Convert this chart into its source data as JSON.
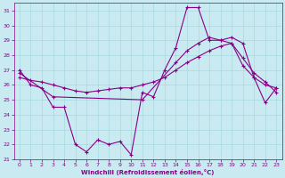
{
  "background_color": "#c8eaf0",
  "grid_color": "#a8d8e0",
  "line_color": "#880088",
  "xlabel": "Windchill (Refroidissement éolien,°C)",
  "xlim": [
    -0.5,
    23.5
  ],
  "ylim": [
    21,
    31.5
  ],
  "yticks": [
    21,
    22,
    23,
    24,
    25,
    26,
    27,
    28,
    29,
    30,
    31
  ],
  "xticks": [
    0,
    1,
    2,
    3,
    4,
    5,
    6,
    7,
    8,
    9,
    10,
    11,
    12,
    13,
    14,
    15,
    16,
    17,
    18,
    19,
    20,
    21,
    22,
    23
  ],
  "line1_x": [
    0,
    1,
    2,
    3,
    4,
    5,
    6,
    7,
    8,
    9,
    10,
    11,
    12,
    13,
    14,
    15,
    16,
    17,
    18,
    19,
    20,
    21,
    22,
    23
  ],
  "line1_y": [
    27.0,
    26.0,
    25.8,
    24.5,
    24.5,
    22.0,
    21.5,
    22.3,
    22.0,
    22.2,
    21.3,
    25.5,
    25.2,
    27.0,
    28.5,
    31.2,
    31.2,
    29.0,
    29.0,
    29.2,
    28.8,
    26.5,
    24.8,
    25.8
  ],
  "line2_x": [
    0,
    3,
    11,
    14,
    15,
    16,
    17,
    18,
    19,
    20,
    21,
    22,
    23
  ],
  "line2_y": [
    26.8,
    25.2,
    25.0,
    27.5,
    28.3,
    28.8,
    29.2,
    29.0,
    28.8,
    27.3,
    26.5,
    26.0,
    25.8
  ],
  "line3_x": [
    0,
    1,
    2,
    3,
    4,
    5,
    6,
    7,
    8,
    9,
    10,
    11,
    12,
    13,
    14,
    15,
    16,
    17,
    18,
    19,
    20,
    21,
    22,
    23
  ],
  "line3_y": [
    26.5,
    26.3,
    26.2,
    26.0,
    25.8,
    25.6,
    25.5,
    25.6,
    25.7,
    25.8,
    25.8,
    26.0,
    26.2,
    26.5,
    27.0,
    27.5,
    27.9,
    28.3,
    28.6,
    28.8,
    27.8,
    26.8,
    26.2,
    25.5
  ]
}
